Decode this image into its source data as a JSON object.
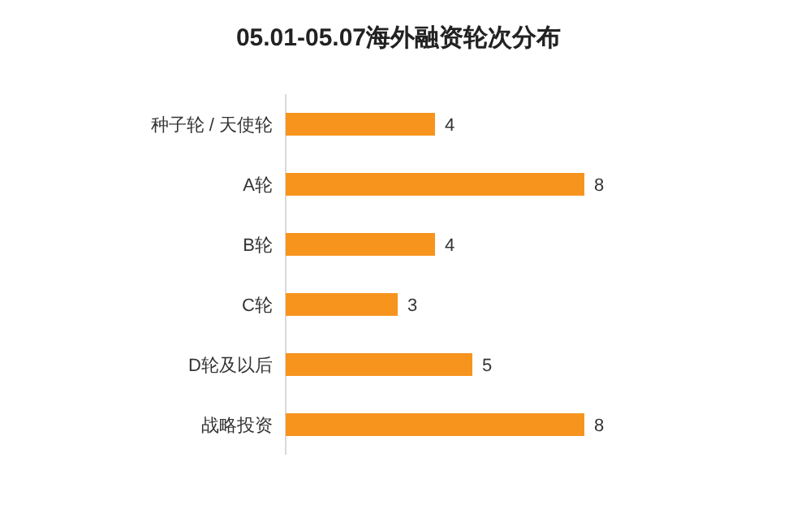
{
  "chart_data": {
    "type": "bar",
    "orientation": "horizontal",
    "title": "05.01-05.07海外融资轮次分布",
    "categories": [
      "种子轮 / 天使轮",
      "A轮",
      "B轮",
      "C轮",
      "D轮及以后",
      "战略投资"
    ],
    "values": [
      4,
      8,
      4,
      3,
      5,
      8
    ],
    "color": "#f7941d",
    "data_labels": true
  }
}
